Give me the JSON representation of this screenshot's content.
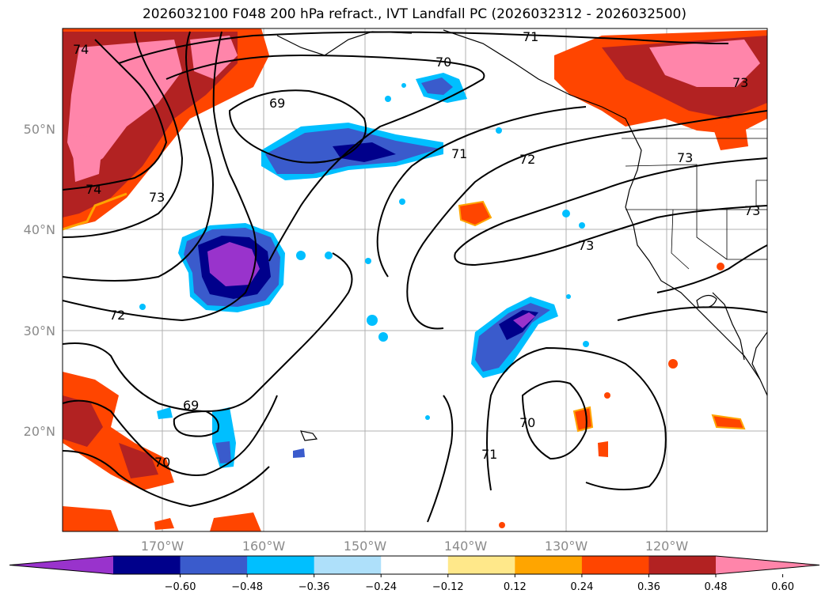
{
  "title": "2026032100 F048 200 hPa refract., IVT Landfall PC (2026032312 - 2026032500)",
  "map": {
    "lat_ticks": [
      "50°N",
      "40°N",
      "30°N",
      "20°N"
    ],
    "lon_ticks": [
      "170°W",
      "160°W",
      "150°W",
      "140°W",
      "130°W",
      "120°W"
    ],
    "contour_labels": [
      "74",
      "71",
      "70",
      "69",
      "71",
      "72",
      "73",
      "74",
      "73",
      "73",
      "72",
      "69",
      "70",
      "70",
      "71",
      "73",
      "73"
    ]
  },
  "colorbar": {
    "ticks": [
      "−0.60",
      "−0.48",
      "−0.36",
      "−0.24",
      "−0.12",
      "0.12",
      "0.24",
      "0.36",
      "0.48",
      "0.60"
    ],
    "colors": [
      "#9933cc",
      "#00008b",
      "#3a5bcc",
      "#00bfff",
      "#aee0fa",
      "#ffffff",
      "#ffe88a",
      "#ffa500",
      "#ff4500",
      "#b22222",
      "#ff85aa"
    ]
  }
}
